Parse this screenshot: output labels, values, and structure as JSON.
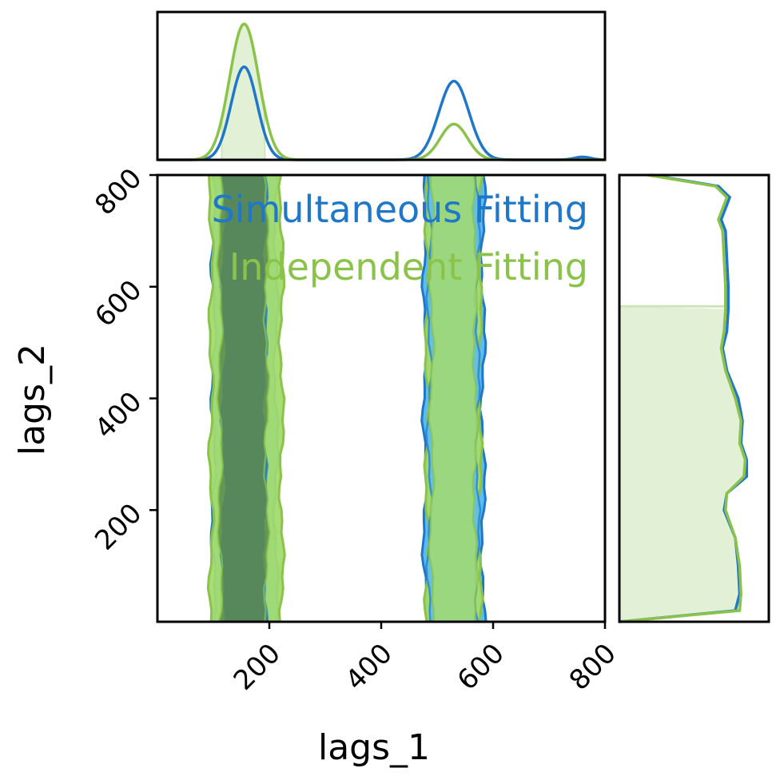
{
  "chart_data": {
    "type": "corner-plot",
    "parameters": [
      "lags_1",
      "lags_2"
    ],
    "xlabel": "lags_1",
    "ylabel": "lags_2",
    "xlim": [
      0,
      800
    ],
    "ylim": [
      0,
      800
    ],
    "x_ticks": [
      "200",
      "400",
      "600",
      "800"
    ],
    "y_ticks": [
      "200",
      "400",
      "600",
      "800"
    ],
    "legend_position": "top-right",
    "series": [
      {
        "name": "Simultaneous Fitting",
        "color": "#1f77c9",
        "fill_light": "#5bbcf2",
        "fill_dark": "#2a6fb0",
        "modes_lags_1": [
          {
            "center": 155,
            "peak": 0.65,
            "inner": [
              118,
              192
            ],
            "outer": [
              100,
              212
            ]
          },
          {
            "center": 530,
            "peak": 0.55,
            "inner": [
              486,
              572
            ],
            "outer": [
              478,
              582
            ]
          }
        ],
        "tail_lags_1": {
          "center": 760,
          "peak": 0.02
        },
        "lags_2_density": [
          [
            0,
            0.0
          ],
          [
            20,
            0.82
          ],
          [
            50,
            0.85
          ],
          [
            100,
            0.84
          ],
          [
            150,
            0.82
          ],
          [
            200,
            0.74
          ],
          [
            230,
            0.76
          ],
          [
            260,
            0.9
          ],
          [
            290,
            0.9
          ],
          [
            320,
            0.86
          ],
          [
            360,
            0.87
          ],
          [
            400,
            0.84
          ],
          [
            450,
            0.76
          ],
          [
            490,
            0.73
          ],
          [
            520,
            0.76
          ],
          [
            560,
            0.77
          ],
          [
            600,
            0.77
          ],
          [
            650,
            0.76
          ],
          [
            700,
            0.75
          ],
          [
            720,
            0.72
          ],
          [
            760,
            0.78
          ],
          [
            780,
            0.7
          ],
          [
            800,
            0.22
          ]
        ]
      },
      {
        "name": "Independent Fitting",
        "color": "#8bc34a",
        "fill_light": "#a3db6f",
        "fill_dark": "#5a8a4e",
        "modes_lags_1": [
          {
            "center": 155,
            "peak": 0.95,
            "inner": [
              112,
              195
            ],
            "outer": [
              96,
              222
            ]
          },
          {
            "center": 530,
            "peak": 0.25,
            "inner": [
              490,
              568
            ],
            "outer": [
              482,
              576
            ]
          }
        ],
        "hist_fill_range_lags_1": [
          115,
          192
        ],
        "hist_fill_level_lags_2": 565,
        "lags_2_density": [
          [
            0,
            0.0
          ],
          [
            20,
            0.85
          ],
          [
            50,
            0.86
          ],
          [
            100,
            0.85
          ],
          [
            150,
            0.82
          ],
          [
            200,
            0.75
          ],
          [
            230,
            0.76
          ],
          [
            260,
            0.88
          ],
          [
            290,
            0.89
          ],
          [
            320,
            0.85
          ],
          [
            360,
            0.86
          ],
          [
            400,
            0.82
          ],
          [
            450,
            0.75
          ],
          [
            490,
            0.72
          ],
          [
            520,
            0.74
          ],
          [
            560,
            0.75
          ],
          [
            600,
            0.75
          ],
          [
            650,
            0.74
          ],
          [
            700,
            0.73
          ],
          [
            720,
            0.7
          ],
          [
            760,
            0.76
          ],
          [
            780,
            0.68
          ],
          [
            800,
            0.2
          ]
        ]
      }
    ]
  }
}
